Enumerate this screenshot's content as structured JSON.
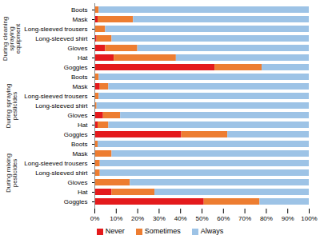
{
  "chart_data": {
    "type": "bar",
    "orientation": "horizontal",
    "stacked": true,
    "grid": false,
    "legend": "bottom",
    "groups": [
      "During cleaning spraying equipment",
      "During spraying pesticides",
      "During mixing pesticides"
    ],
    "categories": [
      "Boots",
      "Mask",
      "Long-sleeved trousers",
      "Long-sleeved shirt",
      "Gloves",
      "Hat",
      "Goggles",
      "Boots",
      "Mask",
      "Long-sleeved trousers",
      "Long-sleeved shirt",
      "Gloves",
      "Hat",
      "Goggles",
      "Boots",
      "Mask",
      "Long-sleeved trousers",
      "Long-sleeved shirt",
      "Gloves",
      "Hat",
      "Goggles"
    ],
    "series": [
      {
        "name": "Never",
        "color": "#e41a1c",
        "values": [
          0,
          1.5,
          0,
          1,
          5,
          9,
          56,
          0,
          2.5,
          0,
          0,
          4,
          1.5,
          40.5,
          0,
          0,
          0,
          0,
          0,
          8,
          51
        ]
      },
      {
        "name": "Sometimes",
        "color": "#ed7d31",
        "values": [
          2,
          16.5,
          5,
          7,
          15,
          29,
          22,
          2,
          4,
          2,
          1,
          8,
          5,
          21.5,
          1.5,
          8,
          2.5,
          2.5,
          16.5,
          20,
          26
        ]
      },
      {
        "name": "Always",
        "color": "#9dc3e6",
        "values": [
          98,
          82,
          95,
          92,
          80,
          62,
          22,
          98,
          93.5,
          98,
          99,
          88,
          93.5,
          38,
          98.5,
          92,
          97.5,
          97.5,
          83.5,
          72,
          23
        ]
      }
    ],
    "xlim": [
      0,
      100
    ],
    "xticks": [
      {
        "value": 0,
        "label": "0%"
      },
      {
        "value": 10,
        "label": "10%"
      },
      {
        "value": 20,
        "label": "20%"
      },
      {
        "value": 30,
        "label": "30%"
      },
      {
        "value": 40,
        "label": "40%"
      },
      {
        "value": 50,
        "label": "50%"
      },
      {
        "value": 60,
        "label": "60%"
      },
      {
        "value": 70,
        "label": "70%"
      },
      {
        "value": 80,
        "label": "80%"
      },
      {
        "value": 90,
        "label": "90%"
      },
      {
        "value": 100,
        "label": "100%"
      }
    ]
  }
}
